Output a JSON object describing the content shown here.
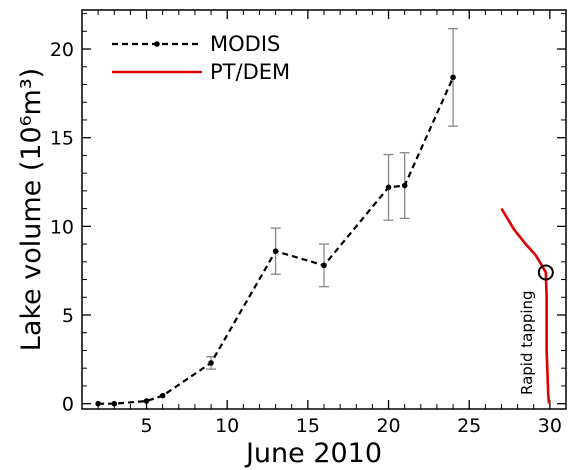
{
  "chart_data": {
    "type": "line",
    "xlabel": "June 2010",
    "ylabel": "Lake volume (10⁶m³)",
    "xlim": [
      1,
      31
    ],
    "ylim": [
      -0.3,
      22.2
    ],
    "xticks": [
      5,
      10,
      15,
      20,
      25,
      30
    ],
    "yticks": [
      0,
      5,
      10,
      15,
      20
    ],
    "grid": false,
    "legend_position": "top-left",
    "series": [
      {
        "name": "MODIS",
        "style": "dashed-with-markers",
        "color": "#000000",
        "points": [
          {
            "x": 2,
            "y": 0.0
          },
          {
            "x": 3,
            "y": 0.0
          },
          {
            "x": 5,
            "y": 0.15
          },
          {
            "x": 6,
            "y": 0.45
          },
          {
            "x": 9,
            "y": 2.3,
            "err": 0.35
          },
          {
            "x": 13,
            "y": 8.6,
            "err": 1.3
          },
          {
            "x": 16,
            "y": 7.8,
            "err": 1.2
          },
          {
            "x": 20,
            "y": 12.2,
            "err": 1.85
          },
          {
            "x": 21,
            "y": 12.3,
            "err": 1.85
          },
          {
            "x": 24,
            "y": 18.4,
            "err": 2.75
          }
        ]
      },
      {
        "name": "PT/DEM",
        "style": "solid",
        "color": "#dd0000",
        "points": [
          {
            "x": 27.0,
            "y": 11.0
          },
          {
            "x": 27.8,
            "y": 9.8
          },
          {
            "x": 28.5,
            "y": 9.0
          },
          {
            "x": 29.1,
            "y": 8.4
          },
          {
            "x": 29.5,
            "y": 7.8
          },
          {
            "x": 29.75,
            "y": 7.4
          },
          {
            "x": 29.8,
            "y": 6.0
          },
          {
            "x": 29.8,
            "y": 3.0
          },
          {
            "x": 29.9,
            "y": 0.5
          },
          {
            "x": 29.95,
            "y": 0.0
          }
        ]
      }
    ],
    "annotations": [
      {
        "text": "Rapid tapping",
        "x": 29.75,
        "y": 7.4,
        "marker": "circle"
      }
    ]
  },
  "colors": {
    "axis": "#000000",
    "modis": "#000000",
    "ptdem": "#dd0000",
    "errorbar": "#888888"
  }
}
